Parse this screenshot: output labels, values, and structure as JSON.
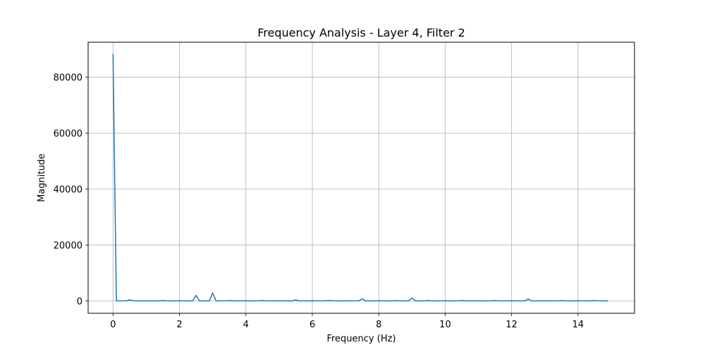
{
  "chart_data": {
    "type": "line",
    "title": "Frequency Analysis - Layer 4, Filter 2",
    "xlabel": "Frequency (Hz)",
    "ylabel": "Magnitude",
    "xlim": [
      -0.75,
      15.7
    ],
    "ylim": [
      -4400,
      92500
    ],
    "xticks": [
      0,
      2,
      4,
      6,
      8,
      10,
      12,
      14
    ],
    "xtick_labels": [
      "0",
      "2",
      "4",
      "6",
      "8",
      "10",
      "12",
      "14"
    ],
    "yticks": [
      0,
      20000,
      40000,
      60000,
      80000
    ],
    "ytick_labels": [
      "0",
      "20000",
      "40000",
      "60000",
      "80000"
    ],
    "grid": true,
    "color": "#1f77b4",
    "series": [
      {
        "x": [
          0,
          0.1,
          0.2,
          0.3,
          0.4,
          0.5,
          0.6,
          0.7,
          0.8,
          0.9,
          1.0,
          1.1,
          1.2,
          1.3,
          1.4,
          1.5,
          1.6,
          1.7,
          1.8,
          1.9,
          2.0,
          2.1,
          2.2,
          2.3,
          2.4,
          2.5,
          2.6,
          2.7,
          2.8,
          2.9,
          3.0,
          3.1,
          3.2,
          3.3,
          3.4,
          3.5,
          3.6,
          3.7,
          3.8,
          3.9,
          4.0,
          4.1,
          4.2,
          4.3,
          4.4,
          4.5,
          4.6,
          4.7,
          4.8,
          4.9,
          5.0,
          5.1,
          5.2,
          5.3,
          5.4,
          5.5,
          5.6,
          5.7,
          5.8,
          5.9,
          6.0,
          6.1,
          6.2,
          6.3,
          6.4,
          6.5,
          6.6,
          6.7,
          6.8,
          6.9,
          7.0,
          7.1,
          7.2,
          7.3,
          7.4,
          7.5,
          7.6,
          7.7,
          7.8,
          7.9,
          8.0,
          8.1,
          8.2,
          8.3,
          8.4,
          8.5,
          8.6,
          8.7,
          8.8,
          8.9,
          9.0,
          9.1,
          9.2,
          9.3,
          9.4,
          9.5,
          9.6,
          9.7,
          9.8,
          9.9,
          10.0,
          10.1,
          10.2,
          10.3,
          10.4,
          10.5,
          10.6,
          10.7,
          10.8,
          10.9,
          11.0,
          11.1,
          11.2,
          11.3,
          11.4,
          11.5,
          11.6,
          11.7,
          11.8,
          11.9,
          12.0,
          12.1,
          12.2,
          12.3,
          12.4,
          12.5,
          12.6,
          12.7,
          12.8,
          12.9,
          13.0,
          13.1,
          13.2,
          13.3,
          13.4,
          13.5,
          13.6,
          13.7,
          13.8,
          13.9,
          14.0,
          14.1,
          14.2,
          14.3,
          14.4,
          14.5,
          14.6,
          14.7,
          14.8,
          14.9
        ],
        "y": [
          88300,
          50,
          40,
          40,
          50,
          400,
          60,
          40,
          40,
          40,
          50,
          40,
          40,
          40,
          40,
          150,
          40,
          40,
          40,
          40,
          60,
          40,
          40,
          40,
          40,
          2000,
          40,
          40,
          40,
          40,
          2900,
          40,
          40,
          40,
          40,
          150,
          40,
          40,
          40,
          40,
          60,
          40,
          40,
          40,
          40,
          200,
          40,
          40,
          40,
          40,
          60,
          40,
          40,
          40,
          40,
          400,
          40,
          40,
          40,
          40,
          60,
          40,
          40,
          40,
          40,
          200,
          40,
          40,
          40,
          40,
          60,
          40,
          40,
          40,
          40,
          800,
          40,
          40,
          40,
          40,
          60,
          40,
          40,
          40,
          40,
          120,
          40,
          40,
          40,
          40,
          1100,
          40,
          40,
          40,
          40,
          150,
          40,
          40,
          40,
          40,
          60,
          40,
          40,
          40,
          40,
          200,
          40,
          40,
          40,
          40,
          60,
          40,
          40,
          40,
          40,
          150,
          40,
          40,
          40,
          40,
          60,
          40,
          40,
          40,
          40,
          700,
          40,
          40,
          40,
          40,
          60,
          40,
          40,
          40,
          40,
          120,
          40,
          40,
          40,
          40,
          60,
          40,
          40,
          40,
          40,
          150,
          40,
          40,
          40,
          40
        ]
      }
    ]
  }
}
